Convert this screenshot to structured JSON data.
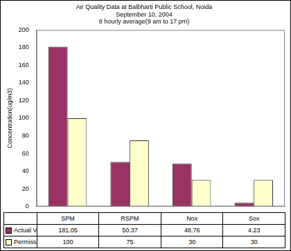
{
  "chart_data": {
    "type": "bar",
    "title": "Air Quality Data at Balbharti Public School, Noida",
    "subtitle": [
      "September 10, 2004",
      "8 hourly average(9 am to 17 pm)"
    ],
    "y_label": "Concentration(ug/m3)",
    "categories": [
      "SPM",
      "RSPM",
      "Nox",
      "Sox"
    ],
    "series": [
      {
        "name": "Actual Value",
        "color": "#993366",
        "values": [
          181.05,
          50.37,
          48.76,
          4.23
        ]
      },
      {
        "name": "Permissible Limit",
        "color": "#ffffcc",
        "values": [
          100,
          75,
          30,
          30
        ]
      }
    ],
    "ylim": [
      0,
      200
    ],
    "yticks": [
      0,
      20,
      40,
      60,
      80,
      100,
      120,
      140,
      160,
      180,
      200
    ],
    "grid": false,
    "tick_labels": "y"
  }
}
